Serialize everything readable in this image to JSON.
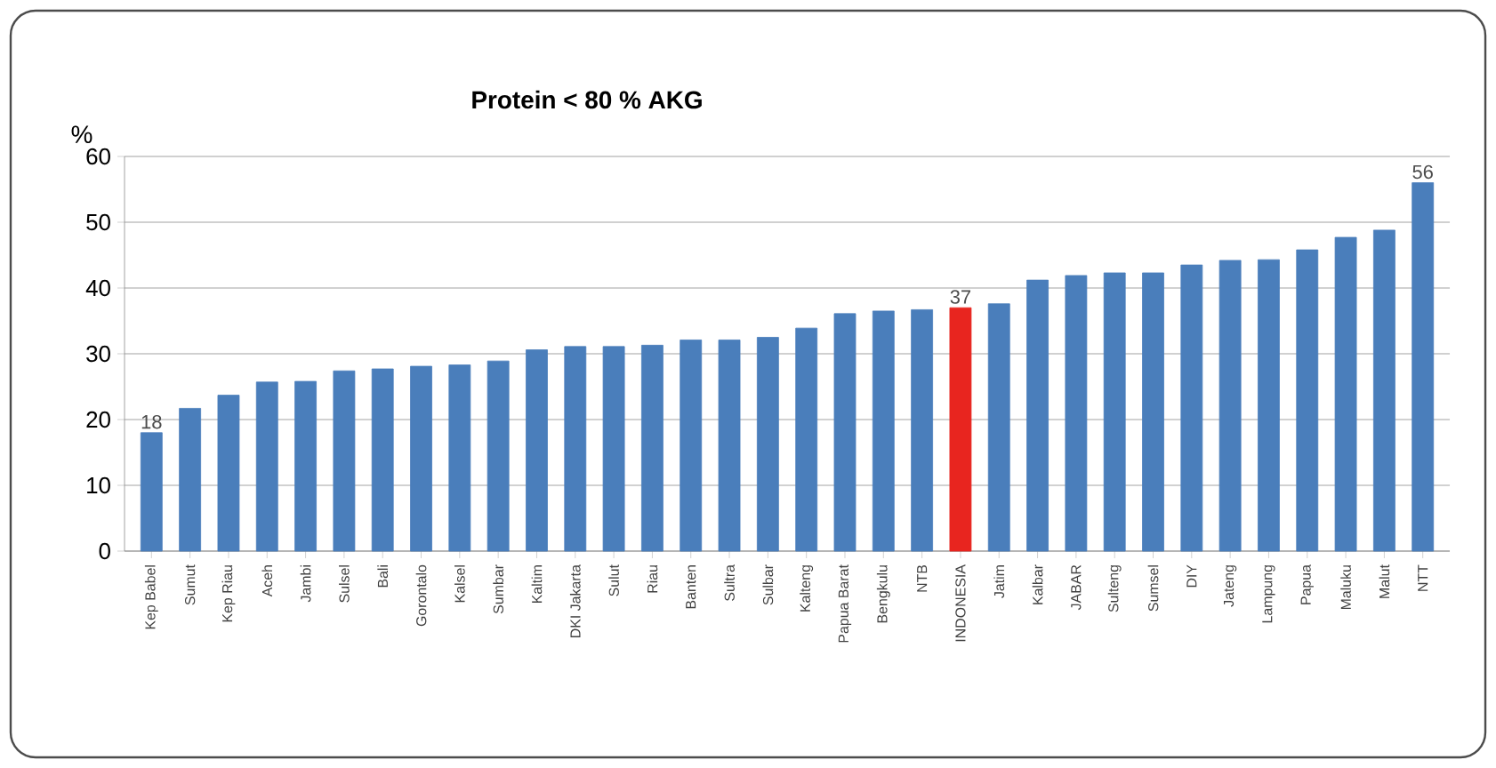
{
  "chart_data": {
    "type": "bar",
    "title": "Protein < 80 % AKG",
    "ylabel": "%",
    "categories": [
      "Kep Babel",
      "Sumut",
      "Kep Riau",
      "Aceh",
      "Jambi",
      "Sulsel",
      "Bali",
      "Gorontalo",
      "Kalsel",
      "Sumbar",
      "Kaltim",
      "DKI Jakarta",
      "Sulut",
      "Riau",
      "Banten",
      "Sultra",
      "Sulbar",
      "Kalteng",
      "Papua Barat",
      "Bengkulu",
      "NTB",
      "INDONESIA",
      "Jatim",
      "Kalbar",
      "JABAR",
      "Sulteng",
      "Sumsel",
      "DIY",
      "Jateng",
      "Lampung",
      "Papua",
      "Maluku",
      "Malut",
      "NTT"
    ],
    "values": [
      18,
      21.7,
      23.7,
      25.7,
      25.8,
      27.4,
      27.7,
      28.1,
      28.3,
      28.9,
      30.6,
      31.1,
      31.1,
      31.3,
      32.1,
      32.1,
      32.5,
      33.9,
      36.1,
      36.5,
      36.7,
      37,
      37.6,
      41.2,
      41.9,
      42.3,
      42.3,
      43.5,
      44.2,
      44.3,
      45.8,
      47.7,
      48.8,
      56
    ],
    "colors": [
      "#4a7ebb",
      "#4a7ebb",
      "#4a7ebb",
      "#4a7ebb",
      "#4a7ebb",
      "#4a7ebb",
      "#4a7ebb",
      "#4a7ebb",
      "#4a7ebb",
      "#4a7ebb",
      "#4a7ebb",
      "#4a7ebb",
      "#4a7ebb",
      "#4a7ebb",
      "#4a7ebb",
      "#4a7ebb",
      "#4a7ebb",
      "#4a7ebb",
      "#4a7ebb",
      "#4a7ebb",
      "#4a7ebb",
      "#e8251f",
      "#4a7ebb",
      "#4a7ebb",
      "#4a7ebb",
      "#4a7ebb",
      "#4a7ebb",
      "#4a7ebb",
      "#4a7ebb",
      "#4a7ebb",
      "#4a7ebb",
      "#4a7ebb",
      "#4a7ebb",
      "#4a7ebb"
    ],
    "value_labels": [
      "18",
      null,
      null,
      null,
      null,
      null,
      null,
      null,
      null,
      null,
      null,
      null,
      null,
      null,
      null,
      null,
      null,
      null,
      null,
      null,
      null,
      "37",
      null,
      null,
      null,
      null,
      null,
      null,
      null,
      null,
      null,
      null,
      null,
      "56"
    ],
    "ylim": [
      0,
      60
    ],
    "yticks": [
      0,
      10,
      20,
      30,
      40,
      50,
      60
    ],
    "grid": "y"
  }
}
